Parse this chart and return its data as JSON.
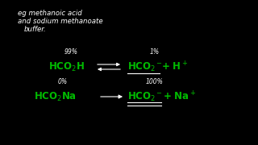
{
  "background_color": "#000000",
  "text_color_white": "#ffffff",
  "text_color_green": "#00bb00",
  "figsize": [
    3.2,
    1.8
  ],
  "dpi": 100,
  "title_line1": "eg methanoic acid",
  "title_line2": "and sodium methanoate",
  "title_line3": "buffer.",
  "eq1_percent_left": "99%",
  "eq1_percent_right": "1%",
  "eq2_percent_left": "0%",
  "eq2_percent_right": "100%"
}
